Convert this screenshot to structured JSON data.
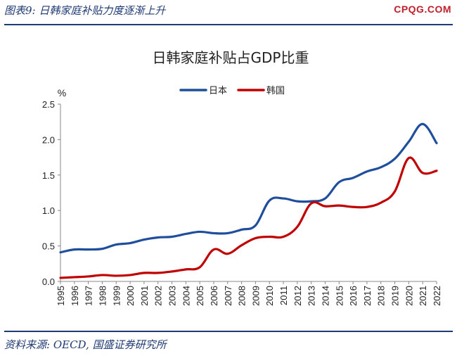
{
  "header": {
    "title": "图表9:  日韩家庭补贴力度逐渐上升",
    "logo": "CPQG.COM"
  },
  "footer": {
    "source": "资料来源:  OECD, 国盛证券研究所"
  },
  "colors": {
    "japan": "#1f4e9c",
    "korea": "#c00000",
    "rule": "#1f3b73"
  },
  "chart_data": {
    "type": "line",
    "title": "日韩家庭补贴占GDP比重",
    "ylabel": "%",
    "xlabel": "",
    "ylim": [
      0,
      2.5
    ],
    "yticks": [
      "0.0",
      "0.5",
      "1.0",
      "1.5",
      "2.0",
      "2.5"
    ],
    "grid": false,
    "legend_position": "top-center",
    "x": [
      "1995",
      "1996",
      "1997",
      "1998",
      "1999",
      "2000",
      "2001",
      "2002",
      "2003",
      "2004",
      "2005",
      "2006",
      "2007",
      "2008",
      "2009",
      "2010",
      "2011",
      "2012",
      "2013",
      "2014",
      "2015",
      "2016",
      "2017",
      "2018",
      "2019",
      "2020",
      "2021",
      "2022"
    ],
    "series": [
      {
        "name": "日本",
        "color": "#1f4e9c",
        "values": [
          0.41,
          0.45,
          0.45,
          0.46,
          0.52,
          0.54,
          0.59,
          0.62,
          0.63,
          0.67,
          0.7,
          0.68,
          0.68,
          0.73,
          0.79,
          1.14,
          1.17,
          1.13,
          1.13,
          1.17,
          1.4,
          1.46,
          1.55,
          1.61,
          1.73,
          1.97,
          2.22,
          1.95
        ]
      },
      {
        "name": "韩国",
        "color": "#c00000",
        "values": [
          0.05,
          0.06,
          0.07,
          0.09,
          0.08,
          0.09,
          0.12,
          0.12,
          0.14,
          0.17,
          0.2,
          0.45,
          0.39,
          0.51,
          0.61,
          0.63,
          0.63,
          0.77,
          1.1,
          1.06,
          1.07,
          1.05,
          1.05,
          1.11,
          1.27,
          1.74,
          1.53,
          1.56
        ]
      }
    ]
  }
}
